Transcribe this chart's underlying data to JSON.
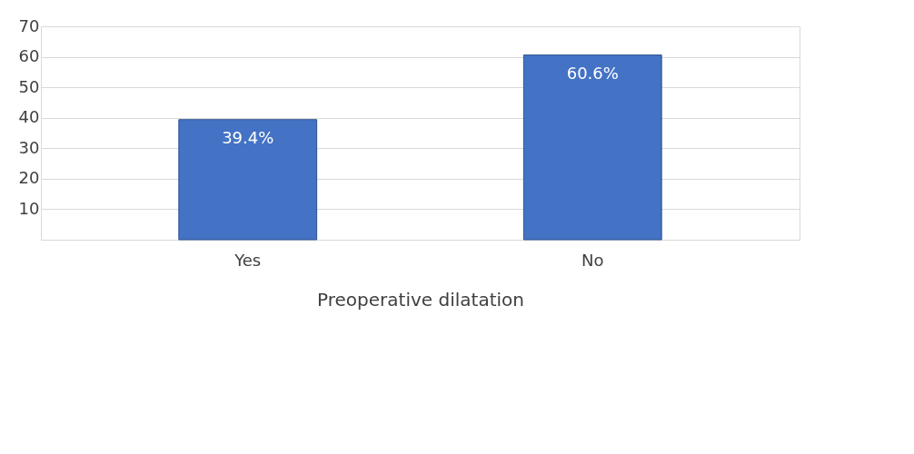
{
  "chart_data": {
    "type": "bar",
    "xlabel": "Preoperative dilatation",
    "categories": [
      "Yes",
      "No"
    ],
    "series": [
      {
        "color": "#4472c4",
        "values": [
          39.4,
          60.6
        ]
      }
    ],
    "value_labels": [
      "39.4%",
      "60.6%"
    ],
    "ylim": [
      0,
      70
    ],
    "yticks": [
      10,
      20,
      30,
      40,
      50,
      60,
      70
    ],
    "grid": "y"
  }
}
